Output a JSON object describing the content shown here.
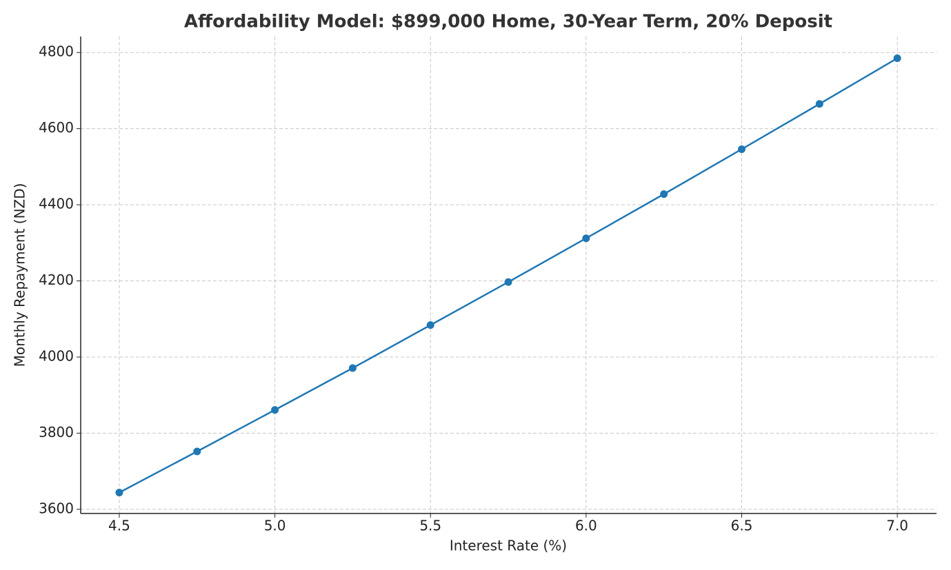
{
  "chart_data": {
    "type": "line",
    "title": "Affordability Model: $899,000 Home, 30-Year Term, 20% Deposit",
    "x_label": "Interest Rate (%)",
    "y_label": "Monthly Repayment (NZD)",
    "x": [
      4.5,
      4.75,
      5.0,
      5.25,
      5.5,
      5.75,
      6.0,
      6.25,
      6.5,
      6.75,
      7.0
    ],
    "series": [
      {
        "name": "Monthly Repayment",
        "color": "#1f77b4",
        "values": [
          3644,
          3752,
          3861,
          3971,
          4084,
          4197,
          4312,
          4428,
          4546,
          4665,
          4785
        ]
      }
    ],
    "xlim": [
      4.376,
      7.126
    ],
    "ylim": [
      3589,
      4842
    ],
    "xticks": [
      4.5,
      {
        "value": 5,
        "label": "5.0"
      },
      5.5,
      {
        "value": 6,
        "label": "6.0"
      },
      6.5,
      {
        "value": 7,
        "label": "7.0"
      }
    ],
    "yticks": [
      3600,
      3800,
      4000,
      4200,
      4400,
      4600,
      4800
    ],
    "grid": true
  }
}
